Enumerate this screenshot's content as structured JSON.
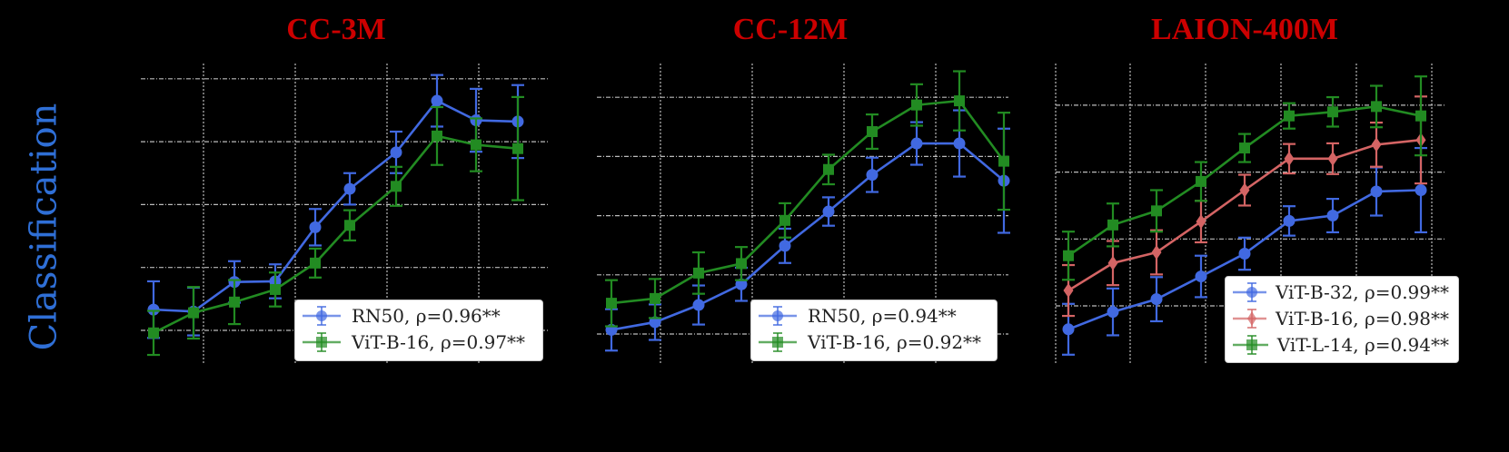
{
  "ylabel": "Classification",
  "colors": {
    "blue": "#4169e1",
    "green": "#228b22",
    "red": "#d46464",
    "title": "#cc0000",
    "ylabel": "#2f6fd6"
  },
  "chart_data": [
    {
      "type": "line",
      "title": "CC-3M",
      "xlabel": "",
      "ylabel": "Classification",
      "grid": true,
      "legend_position": "lower right",
      "x": [
        1,
        2,
        3,
        4,
        5,
        6,
        7,
        8,
        9,
        10
      ],
      "yticks": [
        0,
        1,
        2,
        3,
        4
      ],
      "ylim": [
        -0.5,
        4.4
      ],
      "series": [
        {
          "name": "RN50, ρ=0.96**",
          "marker": "circle",
          "color": "#4169e1",
          "values": [
            0.33,
            0.3,
            0.77,
            0.78,
            1.64,
            2.25,
            2.83,
            3.65,
            3.34,
            3.32
          ],
          "err": [
            0.45,
            0.38,
            0.33,
            0.27,
            0.29,
            0.25,
            0.33,
            0.41,
            0.5,
            0.58
          ]
        },
        {
          "name": "ViT-B-16, ρ=0.97**",
          "marker": "square",
          "color": "#228b22",
          "values": [
            -0.04,
            0.28,
            0.45,
            0.65,
            1.07,
            1.67,
            2.29,
            3.09,
            2.95,
            2.89
          ],
          "err": [
            0.35,
            0.41,
            0.35,
            0.27,
            0.23,
            0.24,
            0.31,
            0.46,
            0.42,
            0.82
          ]
        }
      ]
    },
    {
      "type": "line",
      "title": "CC-12M",
      "xlabel": "",
      "ylabel": "",
      "grid": true,
      "legend_position": "lower right",
      "x": [
        1,
        2,
        3,
        4,
        5,
        6,
        7,
        8,
        9,
        10
      ],
      "yticks": [
        0,
        1,
        2,
        3,
        4
      ],
      "ylim": [
        -0.4,
        4.5
      ],
      "series": [
        {
          "name": "RN50, ρ=0.94**",
          "marker": "circle",
          "color": "#4169e1",
          "values": [
            0.07,
            0.2,
            0.49,
            0.84,
            1.49,
            2.07,
            2.69,
            3.22,
            3.22,
            2.59
          ],
          "err": [
            0.35,
            0.3,
            0.33,
            0.28,
            0.29,
            0.24,
            0.29,
            0.36,
            0.56,
            0.88
          ]
        },
        {
          "name": "ViT-B-16, ρ=0.92**",
          "marker": "square",
          "color": "#228b22",
          "values": [
            0.52,
            0.6,
            1.03,
            1.19,
            1.92,
            2.78,
            3.42,
            3.87,
            3.94,
            2.92
          ],
          "err": [
            0.39,
            0.33,
            0.35,
            0.28,
            0.29,
            0.25,
            0.29,
            0.35,
            0.5,
            0.82
          ]
        }
      ]
    },
    {
      "type": "line",
      "title": "LAION-400M",
      "xlabel": "",
      "ylabel": "",
      "grid": true,
      "legend_position": "lower right",
      "x": [
        1,
        2,
        3,
        4,
        5,
        6,
        7,
        8,
        9,
        10
      ],
      "yticks": [
        0,
        1,
        2,
        3
      ],
      "ylim": [
        -0.4,
        3.4
      ],
      "series": [
        {
          "name": "ViT-B-32, ρ=0.99**",
          "marker": "circle",
          "color": "#4169e1",
          "values": [
            -0.35,
            -0.09,
            0.1,
            0.44,
            0.78,
            1.27,
            1.35,
            1.71,
            1.73
          ],
          "err": [
            0.38,
            0.35,
            0.33,
            0.31,
            0.24,
            0.22,
            0.25,
            0.36,
            0.63
          ],
          "x": [
            1,
            2,
            3,
            4,
            5,
            6,
            7,
            8,
            9
          ]
        },
        {
          "name": "ViT-B-16, ρ=0.98**",
          "marker": "diamond",
          "color": "#d46464",
          "values": [
            0.23,
            0.64,
            0.8,
            1.26,
            1.73,
            2.2,
            2.2,
            2.41,
            2.48
          ],
          "err": [
            0.38,
            0.33,
            0.33,
            0.31,
            0.23,
            0.22,
            0.23,
            0.33,
            0.65
          ],
          "x": [
            1,
            2,
            3,
            4,
            5,
            6,
            7,
            8,
            9
          ]
        },
        {
          "name": "ViT-L-14, ρ=0.94**",
          "marker": "square",
          "color": "#228b22",
          "values": [
            0.75,
            1.21,
            1.42,
            1.86,
            2.36,
            2.84,
            2.9,
            2.98,
            2.84
          ],
          "err": [
            0.36,
            0.32,
            0.31,
            0.29,
            0.21,
            0.19,
            0.22,
            0.31,
            0.59
          ],
          "x": [
            1,
            2,
            3,
            4,
            5,
            6,
            7,
            8,
            9
          ]
        }
      ]
    }
  ]
}
